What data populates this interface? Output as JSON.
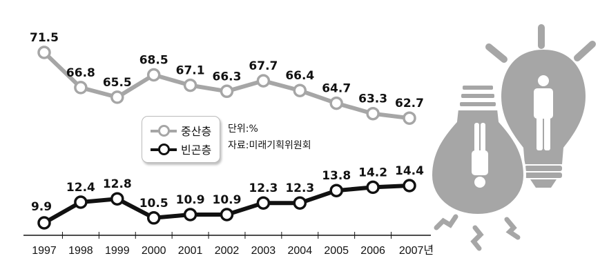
{
  "chart_data": {
    "type": "line",
    "x": [
      "1997",
      "1998",
      "1999",
      "2000",
      "2001",
      "2002",
      "2003",
      "2004",
      "2005",
      "2006",
      "2007년"
    ],
    "series": [
      {
        "name": "중산층",
        "values": [
          71.5,
          66.8,
          65.5,
          68.5,
          67.1,
          66.3,
          67.7,
          66.4,
          64.7,
          63.3,
          62.7
        ],
        "color": "#a6a6a6"
      },
      {
        "name": "빈곤층",
        "values": [
          9.9,
          12.4,
          12.8,
          10.5,
          10.9,
          10.9,
          12.3,
          12.3,
          13.8,
          14.2,
          14.4
        ],
        "color": "#111111"
      }
    ],
    "unit_note": "단위:%",
    "source_note": "자료:미래기획위원회",
    "legend_position": "center-left",
    "grid": false,
    "illustration": "two-light-bulbs-with-person-icons"
  }
}
